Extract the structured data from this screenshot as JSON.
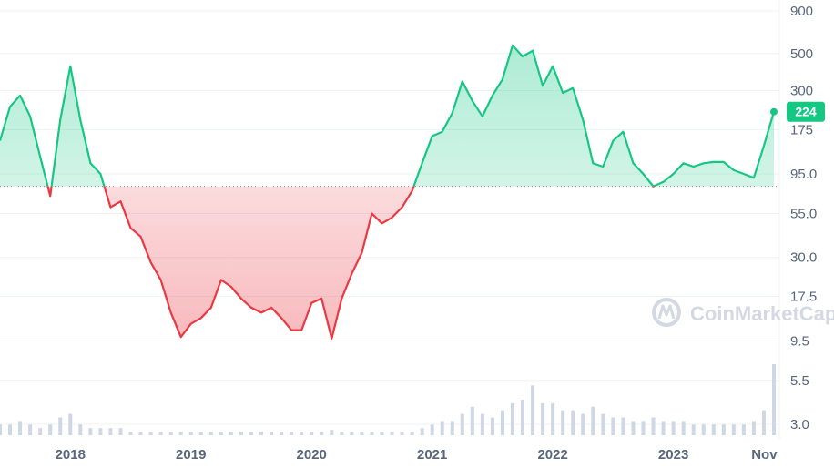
{
  "watermark": {
    "text": "CoinMarketCap",
    "icon": "coinmarketcap-logo-icon"
  },
  "current_price_label": "224",
  "colors": {
    "up": "#16c784",
    "down": "#ea3943",
    "grid": "#eff2f5",
    "tick": "#58667e",
    "volume": "#cfd6e4",
    "reference": "#808a9d"
  },
  "chart_data": {
    "type": "area",
    "title": "",
    "xlabel": "",
    "ylabel": "",
    "y_scale": "log",
    "y_ticks": [
      "900",
      "500",
      "300",
      "175",
      "95.0",
      "55.0",
      "30.0",
      "17.5",
      "9.5",
      "5.5",
      "3.0"
    ],
    "x_ticks": [
      "2018",
      "2019",
      "2020",
      "2021",
      "2022",
      "2023",
      "Nov"
    ],
    "reference_price": 80,
    "x": [
      "2017-06",
      "2017-07",
      "2017-08",
      "2017-09",
      "2017-10",
      "2017-11",
      "2017-12",
      "2018-01",
      "2018-02",
      "2018-03",
      "2018-04",
      "2018-05",
      "2018-06",
      "2018-07",
      "2018-08",
      "2018-09",
      "2018-10",
      "2018-11",
      "2018-12",
      "2019-01",
      "2019-02",
      "2019-03",
      "2019-04",
      "2019-05",
      "2019-06",
      "2019-07",
      "2019-08",
      "2019-09",
      "2019-10",
      "2019-11",
      "2019-12",
      "2020-01",
      "2020-02",
      "2020-03",
      "2020-04",
      "2020-05",
      "2020-06",
      "2020-07",
      "2020-08",
      "2020-09",
      "2020-10",
      "2020-11",
      "2020-12",
      "2021-01",
      "2021-02",
      "2021-03",
      "2021-04",
      "2021-05",
      "2021-06",
      "2021-07",
      "2021-08",
      "2021-09",
      "2021-10",
      "2021-11",
      "2021-12",
      "2022-01",
      "2022-02",
      "2022-03",
      "2022-04",
      "2022-05",
      "2022-06",
      "2022-07",
      "2022-08",
      "2022-09",
      "2022-10",
      "2022-11",
      "2022-12",
      "2023-01",
      "2023-02",
      "2023-03",
      "2023-04",
      "2023-05",
      "2023-06",
      "2023-07",
      "2023-08",
      "2023-09",
      "2023-10",
      "2023-11"
    ],
    "series": [
      {
        "values": [
          150,
          240,
          280,
          210,
          120,
          70,
          200,
          420,
          200,
          110,
          95,
          60,
          65,
          45,
          40,
          28,
          22,
          14,
          10,
          12,
          13,
          15,
          22,
          20,
          17,
          15,
          14,
          15,
          13,
          11,
          11,
          16,
          17,
          9.8,
          17,
          24,
          32,
          55,
          48,
          52,
          60,
          75,
          110,
          160,
          170,
          220,
          340,
          260,
          210,
          280,
          350,
          560,
          480,
          520,
          320,
          420,
          290,
          310,
          200,
          110,
          105,
          150,
          170,
          110,
          95,
          80,
          85,
          95,
          110,
          105,
          110,
          112,
          112,
          100,
          95,
          90,
          140,
          224
        ]
      }
    ],
    "volume": [
      0.3,
      0.3,
      0.4,
      0.3,
      0.2,
      0.3,
      0.5,
      0.6,
      0.3,
      0.2,
      0.2,
      0.2,
      0.2,
      0.1,
      0.1,
      0.1,
      0.1,
      0.1,
      0.1,
      0.1,
      0.1,
      0.1,
      0.1,
      0.1,
      0.1,
      0.1,
      0.1,
      0.1,
      0.1,
      0.1,
      0.1,
      0.1,
      0.1,
      0.15,
      0.1,
      0.1,
      0.1,
      0.1,
      0.1,
      0.1,
      0.1,
      0.1,
      0.2,
      0.3,
      0.4,
      0.4,
      0.6,
      0.8,
      0.6,
      0.5,
      0.7,
      0.9,
      1.0,
      1.4,
      0.9,
      0.9,
      0.7,
      0.7,
      0.6,
      0.8,
      0.6,
      0.5,
      0.5,
      0.4,
      0.4,
      0.5,
      0.4,
      0.4,
      0.4,
      0.3,
      0.3,
      0.3,
      0.3,
      0.3,
      0.3,
      0.4,
      0.7,
      2.0
    ]
  }
}
